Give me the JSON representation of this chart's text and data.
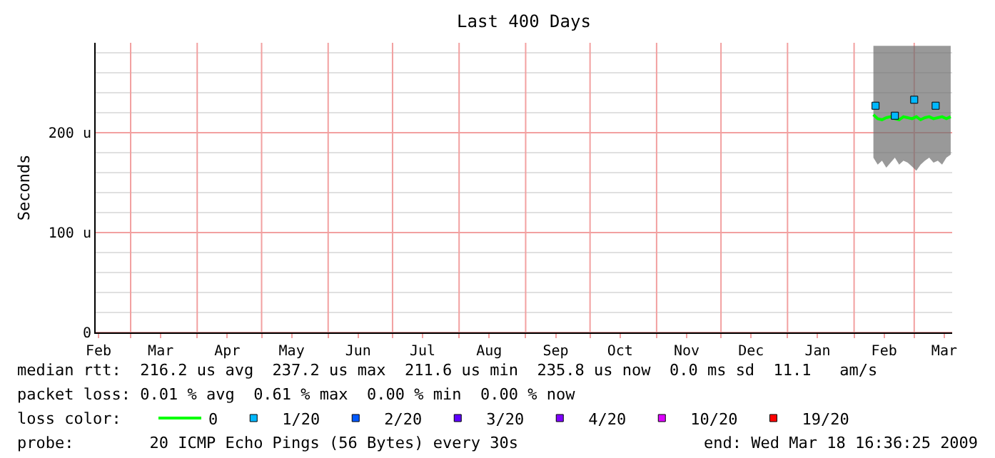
{
  "chart_data": {
    "type": "line",
    "title": "Last 400 Days",
    "ylabel": "Seconds",
    "x": [
      "2009-02-10",
      "2009-02-12",
      "2009-02-14",
      "2009-02-16",
      "2009-02-18",
      "2009-02-20",
      "2009-02-22",
      "2009-02-24",
      "2009-02-26",
      "2009-02-28",
      "2009-03-02",
      "2009-03-04",
      "2009-03-06",
      "2009-03-08",
      "2009-03-10",
      "2009-03-12",
      "2009-03-14",
      "2009-03-16",
      "2009-03-18"
    ],
    "series": [
      {
        "name": "0",
        "color": "#00ff00",
        "values": [
          218,
          214,
          213,
          215,
          216,
          214,
          213,
          216,
          215,
          214,
          216,
          213,
          215,
          216,
          214,
          215,
          216,
          214,
          216
        ],
        "lower": [
          175,
          168,
          172,
          165,
          170,
          175,
          168,
          172,
          170,
          166,
          162,
          168,
          172,
          175,
          170,
          172,
          168,
          175,
          178
        ],
        "upper": [
          287,
          287,
          287,
          287,
          287,
          287,
          287,
          287,
          287,
          287,
          287,
          287,
          287,
          287,
          287,
          287,
          287,
          287,
          287
        ]
      },
      {
        "name": "1/20",
        "type": "scatter",
        "color": "#00b8ff",
        "x": [
          "2009-02-11",
          "2009-02-20",
          "2009-03-01",
          "2009-03-11"
        ],
        "values": [
          227,
          217,
          233,
          227
        ]
      },
      {
        "name": "2/20",
        "type": "scatter",
        "color": "#0059ff",
        "values": [
          null,
          null,
          null,
          null,
          null,
          null,
          null,
          null,
          null,
          null,
          null,
          null,
          null,
          null,
          null,
          null,
          null,
          null,
          null
        ]
      },
      {
        "name": "3/20",
        "type": "scatter",
        "color": "#5e00ff",
        "values": [
          null,
          null,
          null,
          null,
          null,
          null,
          null,
          null,
          null,
          null,
          null,
          null,
          null,
          null,
          null,
          null,
          null,
          null,
          null
        ]
      },
      {
        "name": "4/20",
        "type": "scatter",
        "color": "#7e00ff",
        "values": [
          null,
          null,
          null,
          null,
          null,
          null,
          null,
          null,
          null,
          null,
          null,
          null,
          null,
          null,
          null,
          null,
          null,
          null,
          null
        ]
      },
      {
        "name": "10/20",
        "type": "scatter",
        "color": "#dd00ff",
        "values": [
          null,
          null,
          null,
          null,
          null,
          null,
          null,
          null,
          null,
          null,
          null,
          null,
          null,
          null,
          null,
          null,
          null,
          null,
          null
        ]
      },
      {
        "name": "19/20",
        "type": "scatter",
        "color": "#ff0000",
        "values": [
          null,
          null,
          null,
          null,
          null,
          null,
          null,
          null,
          null,
          null,
          null,
          null,
          null,
          null,
          null,
          null,
          null,
          null,
          null
        ]
      }
    ],
    "xlim": [
      "2008-02-13T16:36",
      "2009-03-18T16:36"
    ],
    "xticks": [
      {
        "value": "2008-02-15",
        "label": "Feb"
      },
      {
        "value": "2008-03-01",
        "label": null
      },
      {
        "value": "2008-03-15",
        "label": "Mar"
      },
      {
        "value": "2008-04-01",
        "label": null
      },
      {
        "value": "2008-04-15",
        "label": "Apr"
      },
      {
        "value": "2008-05-01",
        "label": null
      },
      {
        "value": "2008-05-15",
        "label": "May"
      },
      {
        "value": "2008-06-01",
        "label": null
      },
      {
        "value": "2008-06-15",
        "label": "Jun"
      },
      {
        "value": "2008-07-01",
        "label": null
      },
      {
        "value": "2008-07-15",
        "label": "Jul"
      },
      {
        "value": "2008-08-01",
        "label": null
      },
      {
        "value": "2008-08-15",
        "label": "Aug"
      },
      {
        "value": "2008-09-01",
        "label": null
      },
      {
        "value": "2008-09-15",
        "label": "Sep"
      },
      {
        "value": "2008-10-01",
        "label": null
      },
      {
        "value": "2008-10-15",
        "label": "Oct"
      },
      {
        "value": "2008-11-01",
        "label": null
      },
      {
        "value": "2008-11-15",
        "label": "Nov"
      },
      {
        "value": "2008-12-01",
        "label": null
      },
      {
        "value": "2008-12-15",
        "label": "Dec"
      },
      {
        "value": "2009-01-01",
        "label": null
      },
      {
        "value": "2009-01-15",
        "label": "Jan"
      },
      {
        "value": "2009-02-01",
        "label": null
      },
      {
        "value": "2009-02-15",
        "label": "Feb"
      },
      {
        "value": "2009-03-01",
        "label": null
      },
      {
        "value": "2009-03-15",
        "label": "Mar"
      }
    ],
    "ylim": [
      0,
      290
    ],
    "yticks": [
      0,
      {
        "value": 20,
        "label": null
      },
      {
        "value": 40,
        "label": null
      },
      {
        "value": 60,
        "label": null
      },
      {
        "value": 80,
        "label": null
      },
      {
        "value": 100,
        "label": "100 u"
      },
      {
        "value": 120,
        "label": null
      },
      {
        "value": 140,
        "label": null
      },
      {
        "value": 160,
        "label": null
      },
      {
        "value": 180,
        "label": null
      },
      {
        "value": 200,
        "label": "200 u"
      },
      {
        "value": 220,
        "label": null
      },
      {
        "value": 240,
        "label": null
      },
      {
        "value": 260,
        "label": null
      },
      {
        "value": 280,
        "label": null
      }
    ],
    "grid": true,
    "legend": "bottom",
    "annotations": [
      "median rtt:  216.2 us avg  237.2 us max  211.6 us min  235.8 us now  0.0 ms sd  11.1   am/s",
      "packet loss: 0.01 % avg  0.61 % max  0.00 % min  0.00 % now",
      "loss color:",
      "probe:        20 ICMP Echo Pings (56 Bytes) every 30s",
      "end: Wed Mar 18 16:36:25 2009"
    ]
  }
}
